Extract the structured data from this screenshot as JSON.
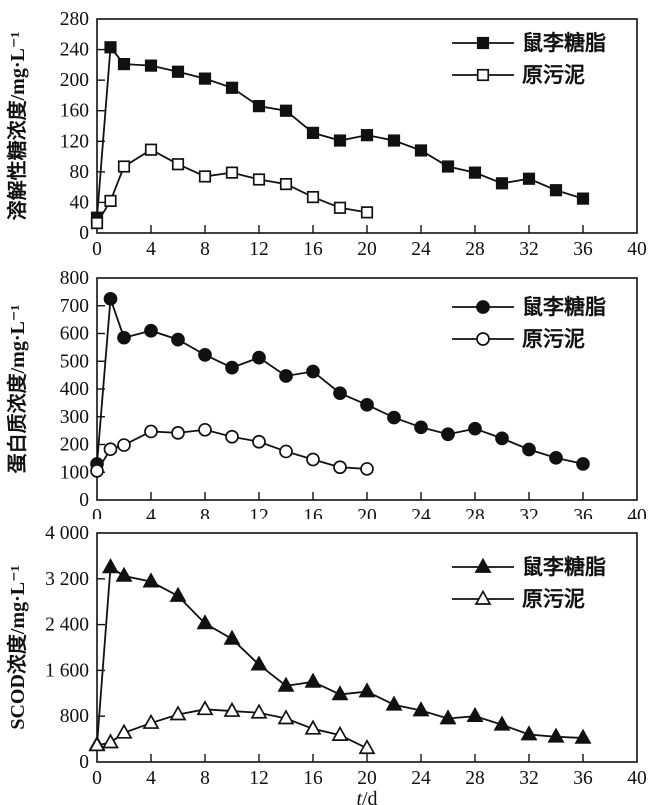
{
  "figure_title": "",
  "colors": {
    "ink": "#111111",
    "background": "#ffffff"
  },
  "x_axis": {
    "label": "t/d",
    "xlim": [
      0,
      40
    ],
    "xticks": [
      0,
      4,
      8,
      12,
      16,
      20,
      24,
      28,
      32,
      36,
      40
    ]
  },
  "legend": {
    "position": "top-right",
    "entries": [
      "鼠李糖脂",
      "原污泥"
    ]
  },
  "chart_data": [
    {
      "type": "line",
      "title": "",
      "xlabel": "",
      "ylabel": "溶解性糖浓度/mg·L⁻¹",
      "xlim": [
        0,
        40
      ],
      "ylim": [
        0,
        280
      ],
      "xticks": [
        0,
        4,
        8,
        12,
        16,
        20,
        24,
        28,
        32,
        36,
        40
      ],
      "yticks": [
        0,
        40,
        80,
        120,
        160,
        200,
        240,
        280
      ],
      "ytick_labels": [
        "0",
        "40",
        "80",
        "120",
        "160",
        "200",
        "240",
        "280"
      ],
      "grid": false,
      "legend_position": "top-right",
      "series": [
        {
          "name": "鼠李糖脂",
          "key": "rhamnolipid",
          "marker": "square-filled",
          "x": [
            0,
            1,
            2,
            4,
            6,
            8,
            10,
            12,
            14,
            16,
            18,
            20,
            22,
            24,
            26,
            28,
            30,
            32,
            34,
            36
          ],
          "y": [
            20,
            243,
            221,
            219,
            211,
            202,
            190,
            166,
            160,
            131,
            121,
            128,
            121,
            108,
            87,
            79,
            65,
            71,
            56,
            45
          ]
        },
        {
          "name": "原污泥",
          "key": "raw-sludge",
          "marker": "square-open",
          "x": [
            0,
            1,
            2,
            4,
            6,
            8,
            10,
            12,
            14,
            16,
            18,
            20
          ],
          "y": [
            13,
            42,
            87,
            109,
            90,
            74,
            79,
            70,
            64,
            47,
            33,
            27
          ]
        }
      ]
    },
    {
      "type": "line",
      "title": "",
      "xlabel": "",
      "ylabel": "蛋白质浓度/mg·L⁻¹",
      "xlim": [
        0,
        40
      ],
      "ylim": [
        0,
        800
      ],
      "xticks": [
        0,
        4,
        8,
        12,
        16,
        20,
        24,
        28,
        32,
        36,
        40
      ],
      "yticks": [
        0,
        100,
        200,
        300,
        400,
        500,
        600,
        700,
        800
      ],
      "ytick_labels": [
        "0",
        "100",
        "200",
        "300",
        "400",
        "500",
        "600",
        "700",
        "800"
      ],
      "grid": false,
      "legend_position": "top-right",
      "series": [
        {
          "name": "鼠李糖脂",
          "key": "rhamnolipid",
          "marker": "circle-filled",
          "x": [
            0,
            1,
            2,
            4,
            6,
            8,
            10,
            12,
            14,
            16,
            18,
            20,
            22,
            24,
            26,
            28,
            30,
            32,
            34,
            36
          ],
          "y": [
            130,
            725,
            585,
            610,
            578,
            523,
            477,
            513,
            447,
            463,
            385,
            343,
            297,
            262,
            237,
            257,
            222,
            182,
            152,
            130
          ]
        },
        {
          "name": "原污泥",
          "key": "raw-sludge",
          "marker": "circle-open",
          "x": [
            0,
            1,
            2,
            4,
            6,
            8,
            10,
            12,
            14,
            16,
            18,
            20
          ],
          "y": [
            105,
            183,
            198,
            247,
            242,
            253,
            228,
            210,
            175,
            146,
            118,
            112
          ]
        }
      ]
    },
    {
      "type": "line",
      "title": "",
      "xlabel": "t/d",
      "ylabel": "SCOD浓度/mg·L⁻¹",
      "xlim": [
        0,
        40
      ],
      "ylim": [
        0,
        4000
      ],
      "xticks": [
        0,
        4,
        8,
        12,
        16,
        20,
        24,
        28,
        32,
        36,
        40
      ],
      "yticks": [
        0,
        800,
        1600,
        2400,
        3200,
        4000
      ],
      "ytick_labels": [
        "0",
        "800",
        "1 600",
        "2 400",
        "3 200",
        "4 000"
      ],
      "grid": false,
      "legend_position": "top-right",
      "series": [
        {
          "name": "鼠李糖脂",
          "key": "rhamnolipid",
          "marker": "triangle-filled",
          "x": [
            0,
            1,
            2,
            4,
            6,
            8,
            10,
            12,
            14,
            16,
            18,
            20,
            22,
            24,
            26,
            28,
            30,
            32,
            34,
            36
          ],
          "y": [
            300,
            3400,
            3250,
            3150,
            2900,
            2420,
            2150,
            1700,
            1330,
            1400,
            1180,
            1230,
            1000,
            900,
            760,
            800,
            650,
            480,
            440,
            420
          ]
        },
        {
          "name": "原污泥",
          "key": "raw-sludge",
          "marker": "triangle-open",
          "x": [
            0,
            1,
            2,
            4,
            6,
            8,
            10,
            12,
            14,
            16,
            18,
            20
          ],
          "y": [
            290,
            340,
            510,
            680,
            830,
            920,
            890,
            860,
            760,
            580,
            470,
            240
          ]
        }
      ]
    }
  ]
}
